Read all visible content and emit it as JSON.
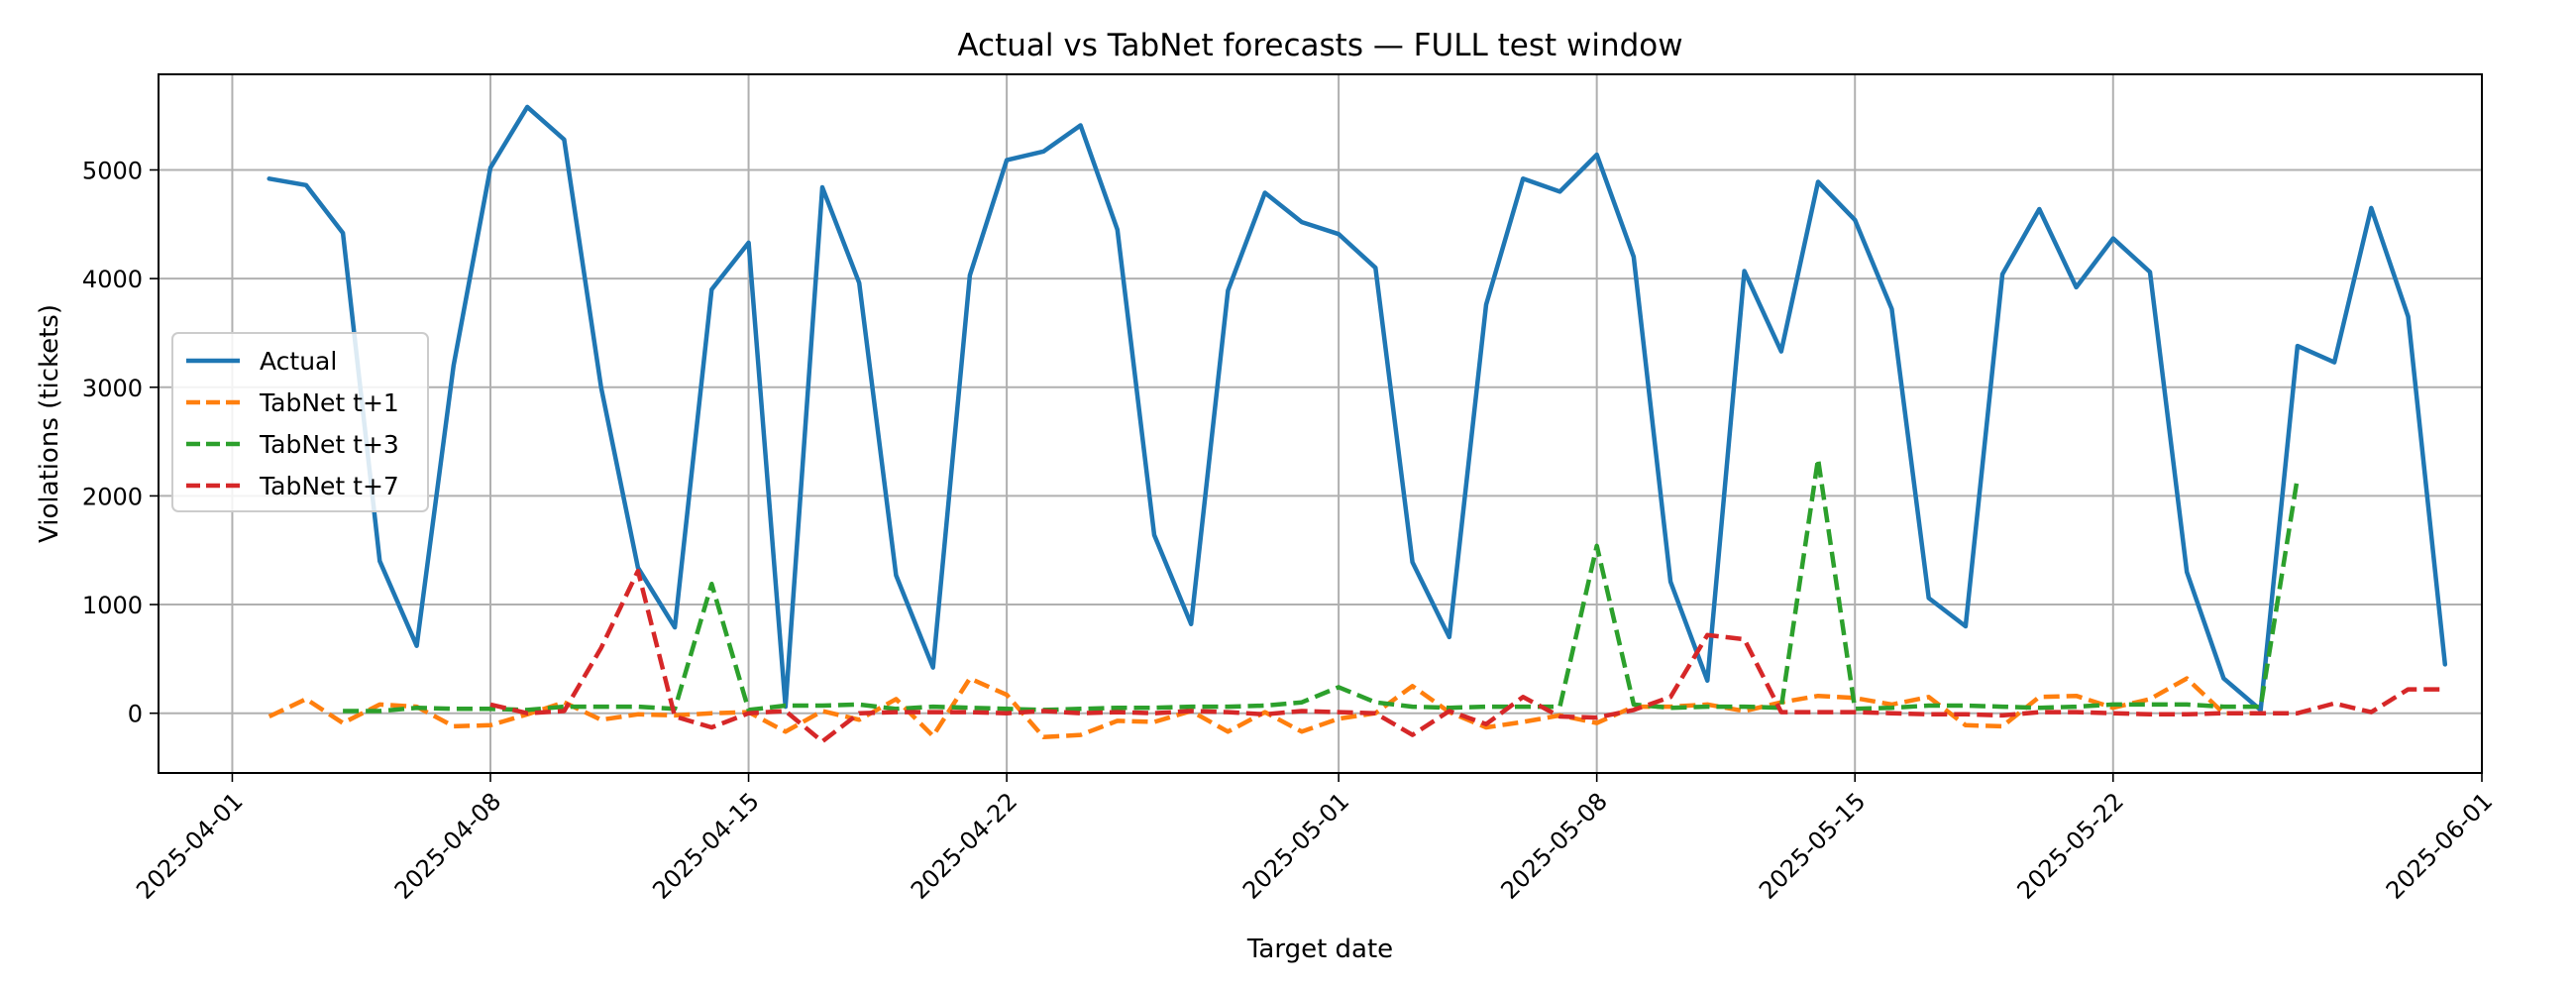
{
  "chart_data": {
    "type": "line",
    "title": "Actual vs TabNet forecasts — FULL test window",
    "xlabel": "Target date",
    "ylabel": "Violations (tickets)",
    "x_range": [
      "2025-03-30",
      "2025-06-01"
    ],
    "ylim": [
      -550,
      5880
    ],
    "x_ticks": [
      "2025-04-01",
      "2025-04-08",
      "2025-04-15",
      "2025-04-22",
      "2025-05-01",
      "2025-05-08",
      "2025-05-15",
      "2025-05-22",
      "2025-06-01"
    ],
    "y_ticks": [
      0,
      1000,
      2000,
      3000,
      4000,
      5000
    ],
    "grid": true,
    "legend_position": "center-left",
    "series": [
      {
        "name": "Actual",
        "color": "#1f77b4",
        "style": "solid",
        "x": [
          "2025-04-02",
          "2025-04-03",
          "2025-04-04",
          "2025-04-05",
          "2025-04-06",
          "2025-04-07",
          "2025-04-08",
          "2025-04-09",
          "2025-04-10",
          "2025-04-11",
          "2025-04-12",
          "2025-04-13",
          "2025-04-14",
          "2025-04-15",
          "2025-04-16",
          "2025-04-17",
          "2025-04-18",
          "2025-04-19",
          "2025-04-20",
          "2025-04-21",
          "2025-04-22",
          "2025-04-23",
          "2025-04-24",
          "2025-04-25",
          "2025-04-26",
          "2025-04-27",
          "2025-04-28",
          "2025-04-29",
          "2025-04-30",
          "2025-05-01",
          "2025-05-02",
          "2025-05-03",
          "2025-05-04",
          "2025-05-05",
          "2025-05-06",
          "2025-05-07",
          "2025-05-08",
          "2025-05-09",
          "2025-05-10",
          "2025-05-11",
          "2025-05-12",
          "2025-05-13",
          "2025-05-14",
          "2025-05-15",
          "2025-05-16",
          "2025-05-17",
          "2025-05-18",
          "2025-05-19",
          "2025-05-20",
          "2025-05-21",
          "2025-05-22",
          "2025-05-23",
          "2025-05-24",
          "2025-05-25",
          "2025-05-26",
          "2025-05-27",
          "2025-05-28",
          "2025-05-29",
          "2025-05-30",
          "2025-05-31"
        ],
        "y": [
          4920,
          4860,
          4420,
          1400,
          620,
          3200,
          5020,
          5580,
          5280,
          3000,
          1340,
          790,
          3900,
          4330,
          60,
          4840,
          3960,
          1270,
          420,
          4030,
          5090,
          5170,
          5410,
          4450,
          1640,
          820,
          3890,
          4790,
          4520,
          4410,
          4100,
          1390,
          700,
          3760,
          4920,
          4800,
          5140,
          4200,
          1210,
          300,
          4070,
          3330,
          4890,
          4540,
          3720,
          1060,
          800,
          4040,
          4640,
          3920,
          4370,
          4060,
          1300,
          320,
          30,
          3380,
          3230,
          4650,
          3650,
          450
        ]
      },
      {
        "name": "TabNet t+1",
        "color": "#ff7f0e",
        "style": "dashed",
        "x": [
          "2025-04-02",
          "2025-04-03",
          "2025-04-04",
          "2025-04-05",
          "2025-04-06",
          "2025-04-07",
          "2025-04-08",
          "2025-04-09",
          "2025-04-10",
          "2025-04-11",
          "2025-04-12",
          "2025-04-13",
          "2025-04-14",
          "2025-04-15",
          "2025-04-16",
          "2025-04-17",
          "2025-04-18",
          "2025-04-19",
          "2025-04-20",
          "2025-04-21",
          "2025-04-22",
          "2025-04-23",
          "2025-04-24",
          "2025-04-25",
          "2025-04-26",
          "2025-04-27",
          "2025-04-28",
          "2025-04-29",
          "2025-04-30",
          "2025-05-01",
          "2025-05-02",
          "2025-05-03",
          "2025-05-04",
          "2025-05-05",
          "2025-05-06",
          "2025-05-07",
          "2025-05-08",
          "2025-05-09",
          "2025-05-10",
          "2025-05-11",
          "2025-05-12",
          "2025-05-13",
          "2025-05-14",
          "2025-05-15",
          "2025-05-16",
          "2025-05-17",
          "2025-05-18",
          "2025-05-19",
          "2025-05-20",
          "2025-05-21",
          "2025-05-22",
          "2025-05-23",
          "2025-05-24",
          "2025-05-25",
          "2025-05-26"
        ],
        "y": [
          -30,
          130,
          -90,
          80,
          60,
          -120,
          -110,
          -10,
          100,
          -60,
          -10,
          -20,
          0,
          10,
          -170,
          20,
          -60,
          130,
          -210,
          320,
          170,
          -220,
          -200,
          -70,
          -80,
          20,
          -170,
          10,
          -170,
          -50,
          0,
          250,
          10,
          -130,
          -80,
          -20,
          -90,
          60,
          60,
          80,
          20,
          100,
          160,
          140,
          80,
          150,
          -110,
          -120,
          150,
          160,
          50,
          130,
          320,
          0,
          0
        ]
      },
      {
        "name": "TabNet t+3",
        "color": "#2ca02c",
        "style": "dashed",
        "x": [
          "2025-04-04",
          "2025-04-05",
          "2025-04-06",
          "2025-04-07",
          "2025-04-08",
          "2025-04-09",
          "2025-04-10",
          "2025-04-11",
          "2025-04-12",
          "2025-04-13",
          "2025-04-14",
          "2025-04-15",
          "2025-04-16",
          "2025-04-17",
          "2025-04-18",
          "2025-04-19",
          "2025-04-20",
          "2025-04-21",
          "2025-04-22",
          "2025-04-23",
          "2025-04-24",
          "2025-04-25",
          "2025-04-26",
          "2025-04-27",
          "2025-04-28",
          "2025-04-29",
          "2025-04-30",
          "2025-05-01",
          "2025-05-02",
          "2025-05-03",
          "2025-05-04",
          "2025-05-05",
          "2025-05-06",
          "2025-05-07",
          "2025-05-08",
          "2025-05-09",
          "2025-05-10",
          "2025-05-11",
          "2025-05-12",
          "2025-05-13",
          "2025-05-14",
          "2025-05-15",
          "2025-05-16",
          "2025-05-17",
          "2025-05-18",
          "2025-05-19",
          "2025-05-20",
          "2025-05-21",
          "2025-05-22",
          "2025-05-23",
          "2025-05-24",
          "2025-05-25",
          "2025-05-26",
          "2025-05-27"
        ],
        "y": [
          20,
          20,
          50,
          40,
          40,
          30,
          60,
          60,
          60,
          40,
          1190,
          30,
          70,
          70,
          80,
          40,
          60,
          50,
          40,
          30,
          40,
          50,
          50,
          60,
          60,
          70,
          100,
          240,
          100,
          60,
          50,
          60,
          60,
          60,
          1540,
          80,
          50,
          60,
          60,
          50,
          2340,
          40,
          50,
          70,
          70,
          60,
          50,
          60,
          80,
          80,
          80,
          60,
          60,
          2170
        ]
      },
      {
        "name": "TabNet t+7",
        "color": "#d62728",
        "style": "dashed",
        "x": [
          "2025-04-08",
          "2025-04-09",
          "2025-04-10",
          "2025-04-11",
          "2025-04-12",
          "2025-04-13",
          "2025-04-14",
          "2025-04-15",
          "2025-04-16",
          "2025-04-17",
          "2025-04-18",
          "2025-04-19",
          "2025-04-20",
          "2025-04-21",
          "2025-04-22",
          "2025-04-23",
          "2025-04-24",
          "2025-04-25",
          "2025-04-26",
          "2025-04-27",
          "2025-04-28",
          "2025-04-29",
          "2025-04-30",
          "2025-05-01",
          "2025-05-02",
          "2025-05-03",
          "2025-05-04",
          "2025-05-05",
          "2025-05-06",
          "2025-05-07",
          "2025-05-08",
          "2025-05-09",
          "2025-05-10",
          "2025-05-11",
          "2025-05-12",
          "2025-05-13",
          "2025-05-14",
          "2025-05-15",
          "2025-05-16",
          "2025-05-17",
          "2025-05-18",
          "2025-05-19",
          "2025-05-20",
          "2025-05-21",
          "2025-05-22",
          "2025-05-23",
          "2025-05-24",
          "2025-05-25",
          "2025-05-26",
          "2025-05-27",
          "2025-05-28",
          "2025-05-29",
          "2025-05-30",
          "2025-05-31"
        ],
        "y": [
          80,
          0,
          20,
          600,
          1310,
          -30,
          -130,
          0,
          20,
          -260,
          0,
          10,
          10,
          10,
          0,
          20,
          0,
          10,
          0,
          20,
          10,
          -10,
          20,
          10,
          0,
          -200,
          20,
          -100,
          150,
          -30,
          -40,
          30,
          150,
          720,
          680,
          10,
          10,
          10,
          0,
          -10,
          -10,
          -20,
          10,
          10,
          0,
          -10,
          -10,
          0,
          0,
          0,
          90,
          10,
          220,
          220
        ]
      }
    ]
  }
}
